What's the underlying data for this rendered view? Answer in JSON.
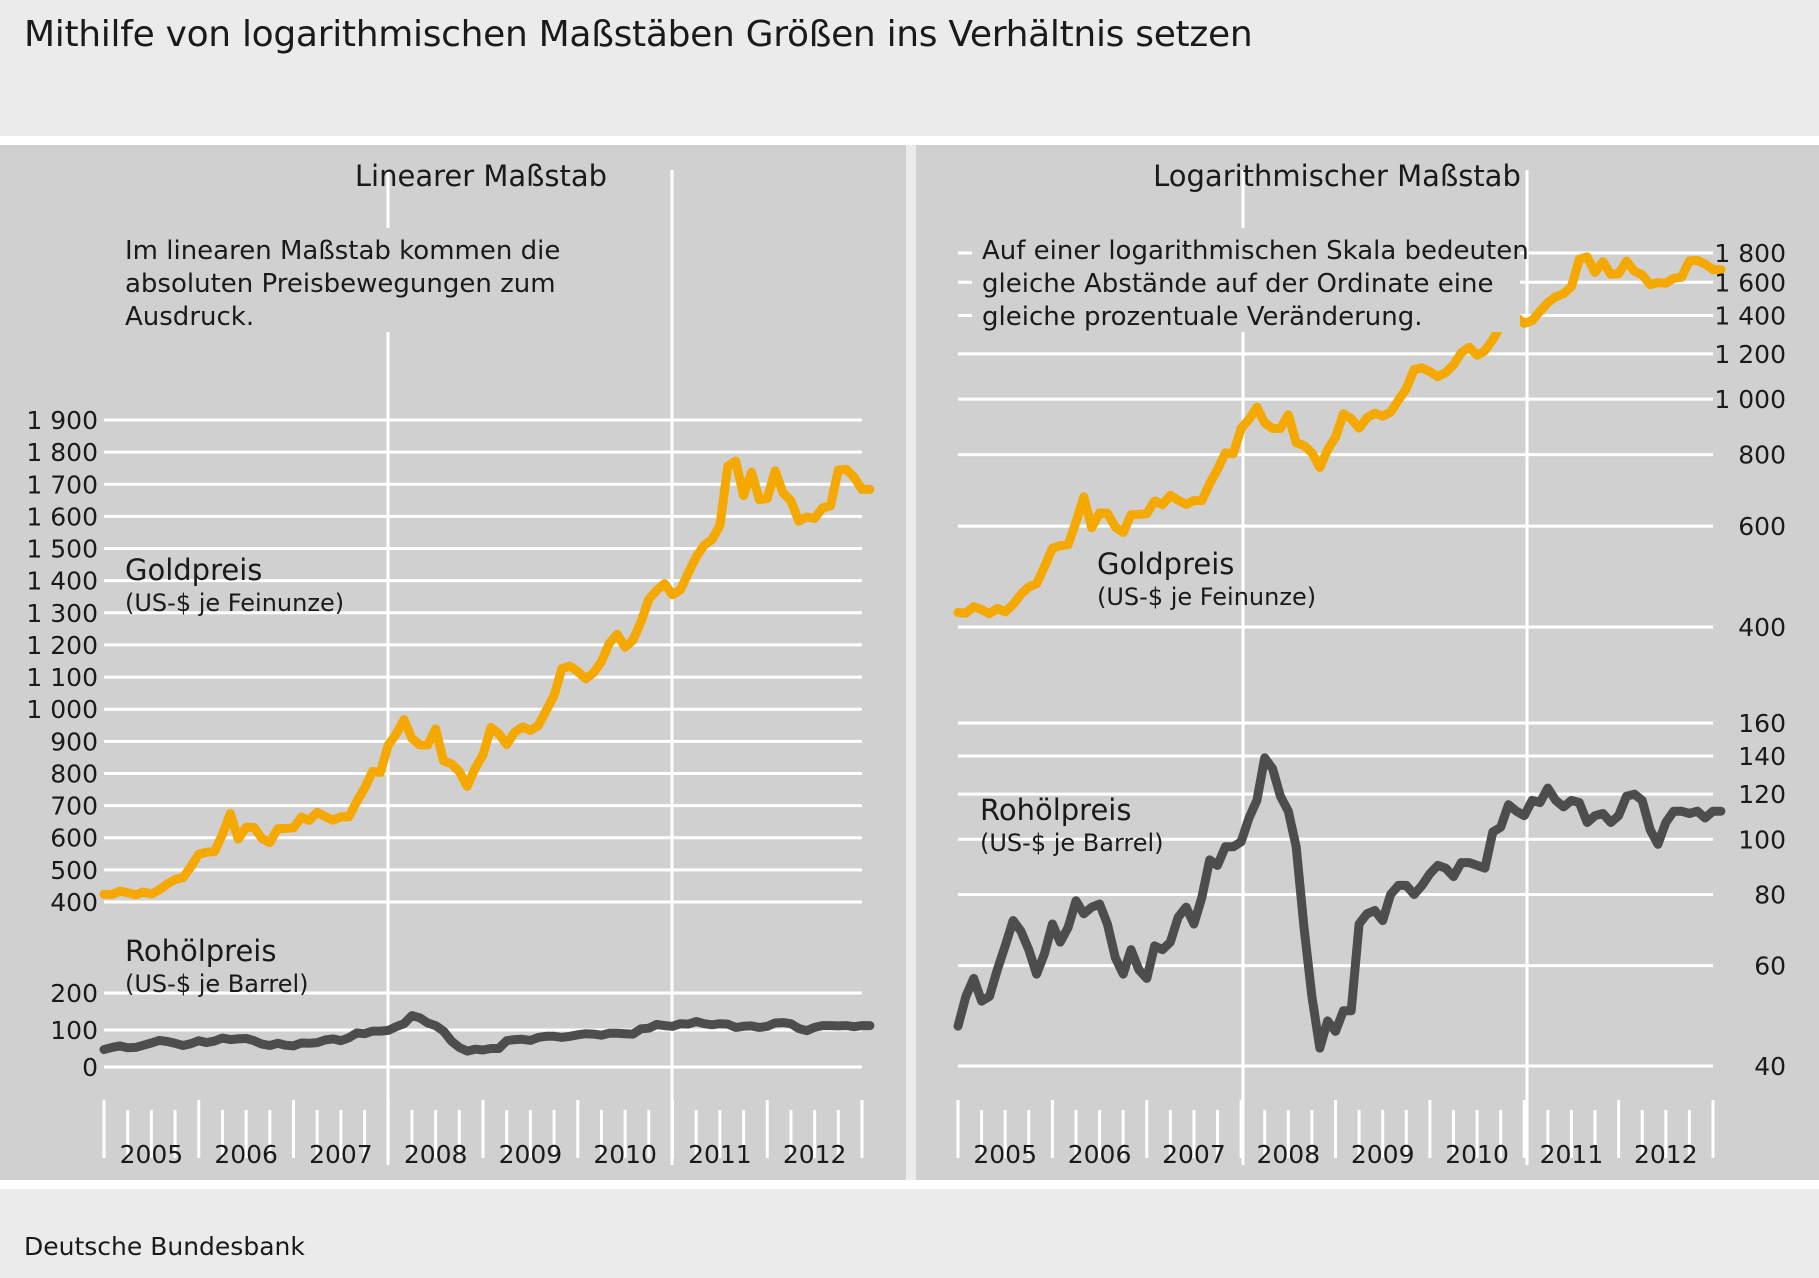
{
  "title": "Mithilfe von logarithmischen Maßstäben Größen ins Verhältnis setzen",
  "footer": "Deutsche Bundesbank",
  "colors": {
    "gold": "#f5a800",
    "oil": "#4d4d4d",
    "panel": "#d0d0d0",
    "grid": "#ffffff",
    "background": "#ebebeb"
  },
  "chart_data": [
    {
      "type": "line",
      "title": "Linearer Maßstab",
      "annotation": [
        "Im linearen Maßstab kommen die",
        "absoluten Preisbewegungen zum",
        "Ausdruck."
      ],
      "x_tick_labels": [
        "2005",
        "2006",
        "2007",
        "2008",
        "2009",
        "2010",
        "2011",
        "2012"
      ],
      "x_unit": "months since Jan 2005",
      "grid": true,
      "series": [
        {
          "name": "Goldpreis",
          "subtitle": "(US-$ je Feinunze)",
          "y_scale": "linear",
          "ylim": [
            400,
            1900
          ],
          "y_ticks": [
            400,
            500,
            600,
            700,
            800,
            900,
            1000,
            1100,
            1200,
            1300,
            1400,
            1500,
            1600,
            1700,
            1800,
            1900
          ],
          "y_tick_labels": [
            "400",
            "500",
            "600",
            "700",
            "800",
            "900",
            "1 000",
            "1 100",
            "1 200",
            "1 300",
            "1 400",
            "1 500",
            "1 600",
            "1 700",
            "1 800",
            "1 900"
          ]
        },
        {
          "name": "Rohölpreis",
          "subtitle": "(US-$ je Barrel)",
          "y_scale": "linear",
          "ylim": [
            0,
            200
          ],
          "y_ticks": [
            0,
            100,
            200
          ],
          "y_tick_labels": [
            "0",
            "100",
            "200"
          ]
        }
      ]
    },
    {
      "type": "line",
      "title": "Logarithmischer Maßstab",
      "annotation": [
        "Auf einer logarithmischen Skala bedeuten",
        "gleiche Abstände auf der Ordinate eine",
        "gleiche prozentuale Veränderung."
      ],
      "x_tick_labels": [
        "2005",
        "2006",
        "2007",
        "2008",
        "2009",
        "2010",
        "2011",
        "2012"
      ],
      "grid": true,
      "series": [
        {
          "name": "Goldpreis",
          "subtitle": "(US-$ je Feinunze)",
          "y_scale": "log",
          "y_ticks": [
            400,
            600,
            800,
            1000,
            1200,
            1400,
            1600,
            1800
          ],
          "y_tick_labels": [
            "400",
            "600",
            "800",
            "1 000",
            "1 200",
            "1 400",
            "1 600",
            "1 800"
          ]
        },
        {
          "name": "Rohölpreis",
          "subtitle": "(US-$ je Barrel)",
          "y_scale": "log",
          "y_ticks": [
            40,
            60,
            80,
            100,
            120,
            140,
            160
          ],
          "y_tick_labels": [
            "40",
            "60",
            "80",
            "100",
            "120",
            "140",
            "160"
          ]
        }
      ]
    }
  ],
  "series_values": {
    "months_start": "2005-01",
    "gold": [
      424,
      423,
      434,
      429,
      422,
      431,
      425,
      438,
      456,
      470,
      476,
      510,
      549,
      555,
      557,
      610,
      675,
      596,
      633,
      632,
      598,
      585,
      628,
      629,
      631,
      664,
      654,
      679,
      666,
      655,
      665,
      665,
      712,
      754,
      806,
      803,
      889,
      922,
      968,
      909,
      889,
      889,
      939,
      839,
      830,
      806,
      760,
      816,
      858,
      943,
      924,
      890,
      928,
      945,
      934,
      949,
      996,
      1043,
      1127,
      1134,
      1117,
      1095,
      1113,
      1148,
      1205,
      1233,
      1193,
      1215,
      1271,
      1342,
      1370,
      1391,
      1356,
      1372,
      1424,
      1474,
      1510,
      1528,
      1572,
      1756,
      1772,
      1665,
      1738,
      1652,
      1656,
      1742,
      1673,
      1649,
      1585,
      1598,
      1594,
      1626,
      1633,
      1744,
      1747,
      1722,
      1684,
      1684
    ],
    "oil": [
      47,
      53,
      57,
      52,
      53,
      59,
      65,
      72,
      69,
      64,
      58,
      63,
      71,
      66,
      70,
      78,
      74,
      76,
      77,
      71,
      62,
      58,
      64,
      59,
      57,
      65,
      64,
      66,
      73,
      76,
      71,
      79,
      92,
      90,
      97,
      97,
      99,
      109,
      117,
      139,
      133,
      119,
      112,
      97,
      70,
      53,
      43,
      48,
      46,
      50,
      50,
      71,
      74,
      75,
      72,
      80,
      83,
      83,
      80,
      83,
      87,
      90,
      89,
      86,
      91,
      91,
      90,
      89,
      103,
      105,
      115,
      112,
      110,
      117,
      116,
      123,
      117,
      114,
      117,
      116,
      107,
      110,
      111,
      107,
      110,
      119,
      120,
      117,
      104,
      98,
      107,
      112,
      112,
      111,
      112,
      109,
      112,
      112
    ]
  }
}
